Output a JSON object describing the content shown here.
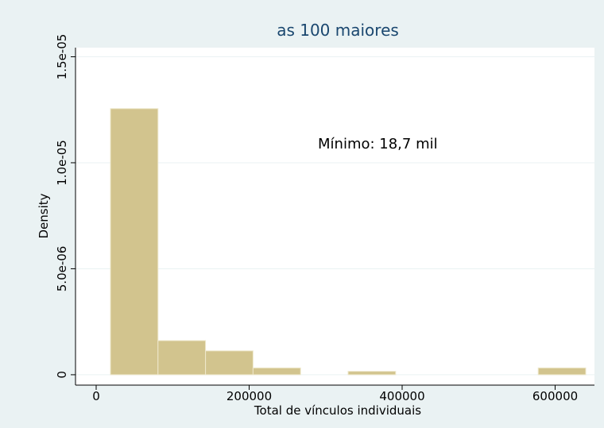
{
  "chart_data": {
    "type": "histogram",
    "title": "as 100 maiores",
    "x_label": "Total de vínculos individuais",
    "y_label": "Density",
    "annotation": "Mínimo: 18,7 mil",
    "bins": [
      18700,
      80830,
      142960,
      205090,
      267220,
      329350,
      391480,
      453610,
      515740,
      577870,
      640000
    ],
    "values": [
      1.2554e-05,
      1.6095e-06,
      1.1267e-06,
      3.219e-07,
      0,
      1.6095e-07,
      0,
      0,
      0,
      3.219e-07
    ],
    "color": "#d2c48e",
    "xlim": [
      -27000,
      651400
    ],
    "ylim": [
      -4.9e-07,
      1.543e-05
    ],
    "xticks": [
      0,
      200000,
      400000,
      600000
    ],
    "yticks": [
      0,
      {
        "value": 5e-06,
        "label": "5.0e-06"
      },
      {
        "value": 1e-05,
        "label": "1.0e-05"
      },
      {
        "value": 1.5e-05,
        "label": "1.5e-05"
      }
    ],
    "grid": true
  }
}
